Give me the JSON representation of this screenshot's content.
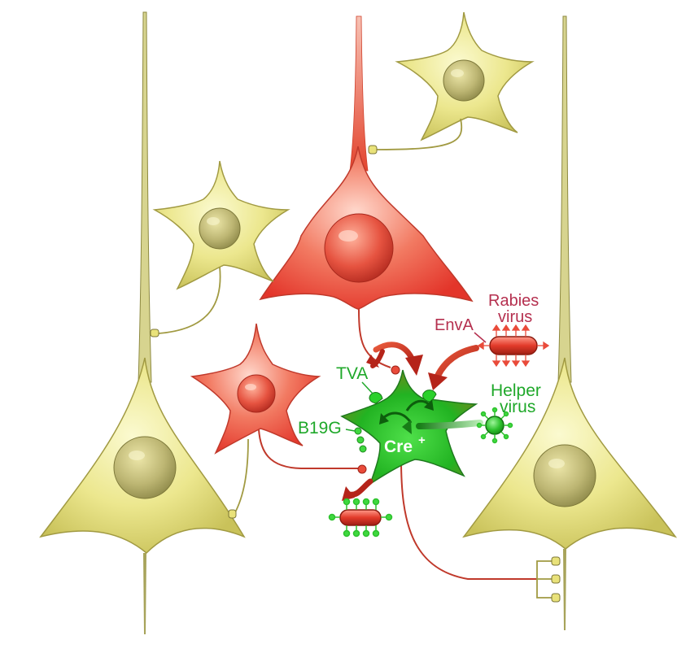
{
  "labels": {
    "tva": "TVA",
    "envA": "EnvA",
    "rabies_line1": "Rabies",
    "rabies_line2": "virus",
    "helper_line1": "Helper",
    "helper_line2": "virus",
    "b19g": "B19G",
    "cre": "Cre",
    "cre_superscript": "+"
  },
  "colors": {
    "starter_neuron": "#2fb52a",
    "labeled_neuron": "#e8463a",
    "unlabeled_neuron": "#e9e58c",
    "glycoprotein": "#3fd83f",
    "rabies_label": "#b5304f",
    "helper_label": "#1fa82a"
  }
}
